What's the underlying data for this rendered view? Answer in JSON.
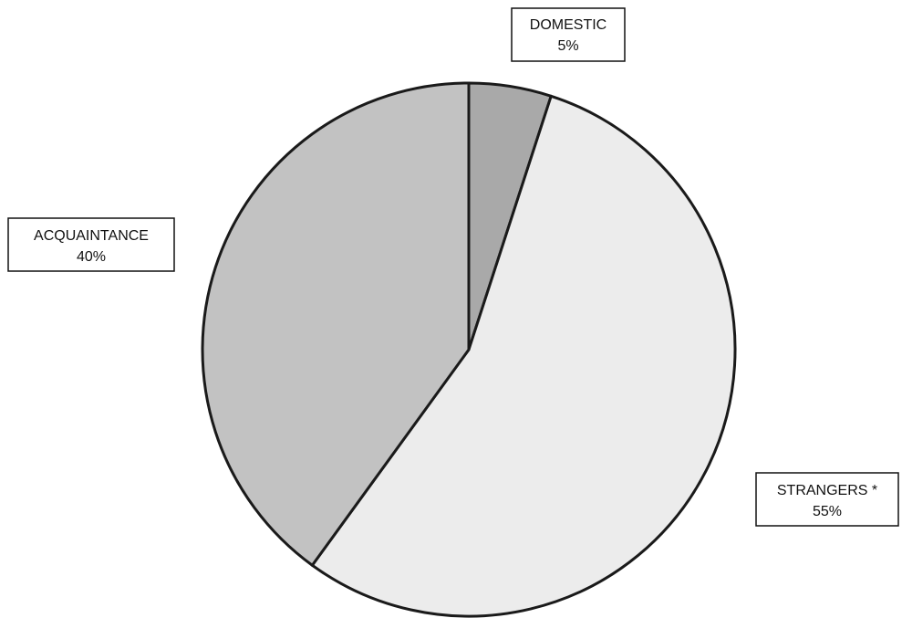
{
  "chart_data": {
    "type": "pie",
    "categories": [
      "DOMESTIC",
      "STRANGERS *",
      "ACQUAINTANCE"
    ],
    "values": [
      5,
      55,
      40
    ],
    "value_labels": [
      "5%",
      "55%",
      "40%"
    ],
    "colors": [
      "#a9a9a9",
      "#ececec",
      "#c2c2c2"
    ],
    "start_angle_deg": 0,
    "direction": "clockwise",
    "title": "",
    "legend": "none",
    "data_labels": "boxed, outside"
  }
}
